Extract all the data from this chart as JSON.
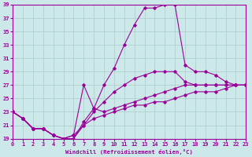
{
  "xlabel": "Windchill (Refroidissement éolien,°C)",
  "xlim": [
    0,
    23
  ],
  "ylim": [
    19,
    39
  ],
  "yticks": [
    19,
    21,
    23,
    25,
    27,
    29,
    31,
    33,
    35,
    37,
    39
  ],
  "xticks": [
    0,
    1,
    2,
    3,
    4,
    5,
    6,
    7,
    8,
    9,
    10,
    11,
    12,
    13,
    14,
    15,
    16,
    17,
    18,
    19,
    20,
    21,
    22,
    23
  ],
  "bg_color": "#cde8e8",
  "line_color": "#990099",
  "grid_color": "#aacccc",
  "curves": [
    {
      "x": [
        0,
        1,
        2,
        3,
        4,
        5,
        6,
        7,
        8,
        9,
        10,
        11,
        12,
        13,
        14,
        15,
        16,
        17,
        18,
        19,
        20,
        21,
        22,
        23
      ],
      "y": [
        23,
        22,
        20.5,
        20.5,
        19.5,
        19,
        19,
        21.5,
        23.5,
        27,
        29.5,
        33,
        36,
        38.5,
        38.5,
        39,
        39,
        30,
        29,
        29,
        28.5,
        27.5,
        27,
        27
      ]
    },
    {
      "x": [
        0,
        1,
        2,
        3,
        4,
        5,
        6,
        7,
        8,
        9,
        10,
        11,
        12,
        13,
        14,
        15,
        16,
        17,
        18,
        19,
        20,
        21,
        22,
        23
      ],
      "y": [
        23,
        22,
        20.5,
        20.5,
        19.5,
        19,
        19,
        21,
        23,
        24.5,
        26,
        27,
        28,
        28.5,
        29,
        29,
        29,
        27.5,
        27,
        27,
        27,
        27,
        27,
        27
      ]
    },
    {
      "x": [
        0,
        1,
        2,
        3,
        4,
        5,
        6,
        7,
        8,
        9,
        10,
        11,
        12,
        13,
        14,
        15,
        16,
        17,
        18,
        19,
        20,
        21,
        22,
        23
      ],
      "y": [
        23,
        22,
        20.5,
        20.5,
        19.5,
        19,
        19.5,
        27,
        23.5,
        23,
        23.5,
        24,
        24.5,
        25,
        25.5,
        26,
        26.5,
        27,
        27,
        27,
        27,
        27,
        27,
        27
      ]
    },
    {
      "x": [
        0,
        1,
        2,
        3,
        4,
        5,
        6,
        7,
        8,
        9,
        10,
        11,
        12,
        13,
        14,
        15,
        16,
        17,
        18,
        19,
        20,
        21,
        22,
        23
      ],
      "y": [
        23,
        22,
        20.5,
        20.5,
        19.5,
        19,
        19.5,
        21,
        22,
        22.5,
        23,
        23.5,
        24,
        24,
        24.5,
        24.5,
        25,
        25.5,
        26,
        26,
        26,
        26.5,
        27,
        27
      ]
    }
  ]
}
